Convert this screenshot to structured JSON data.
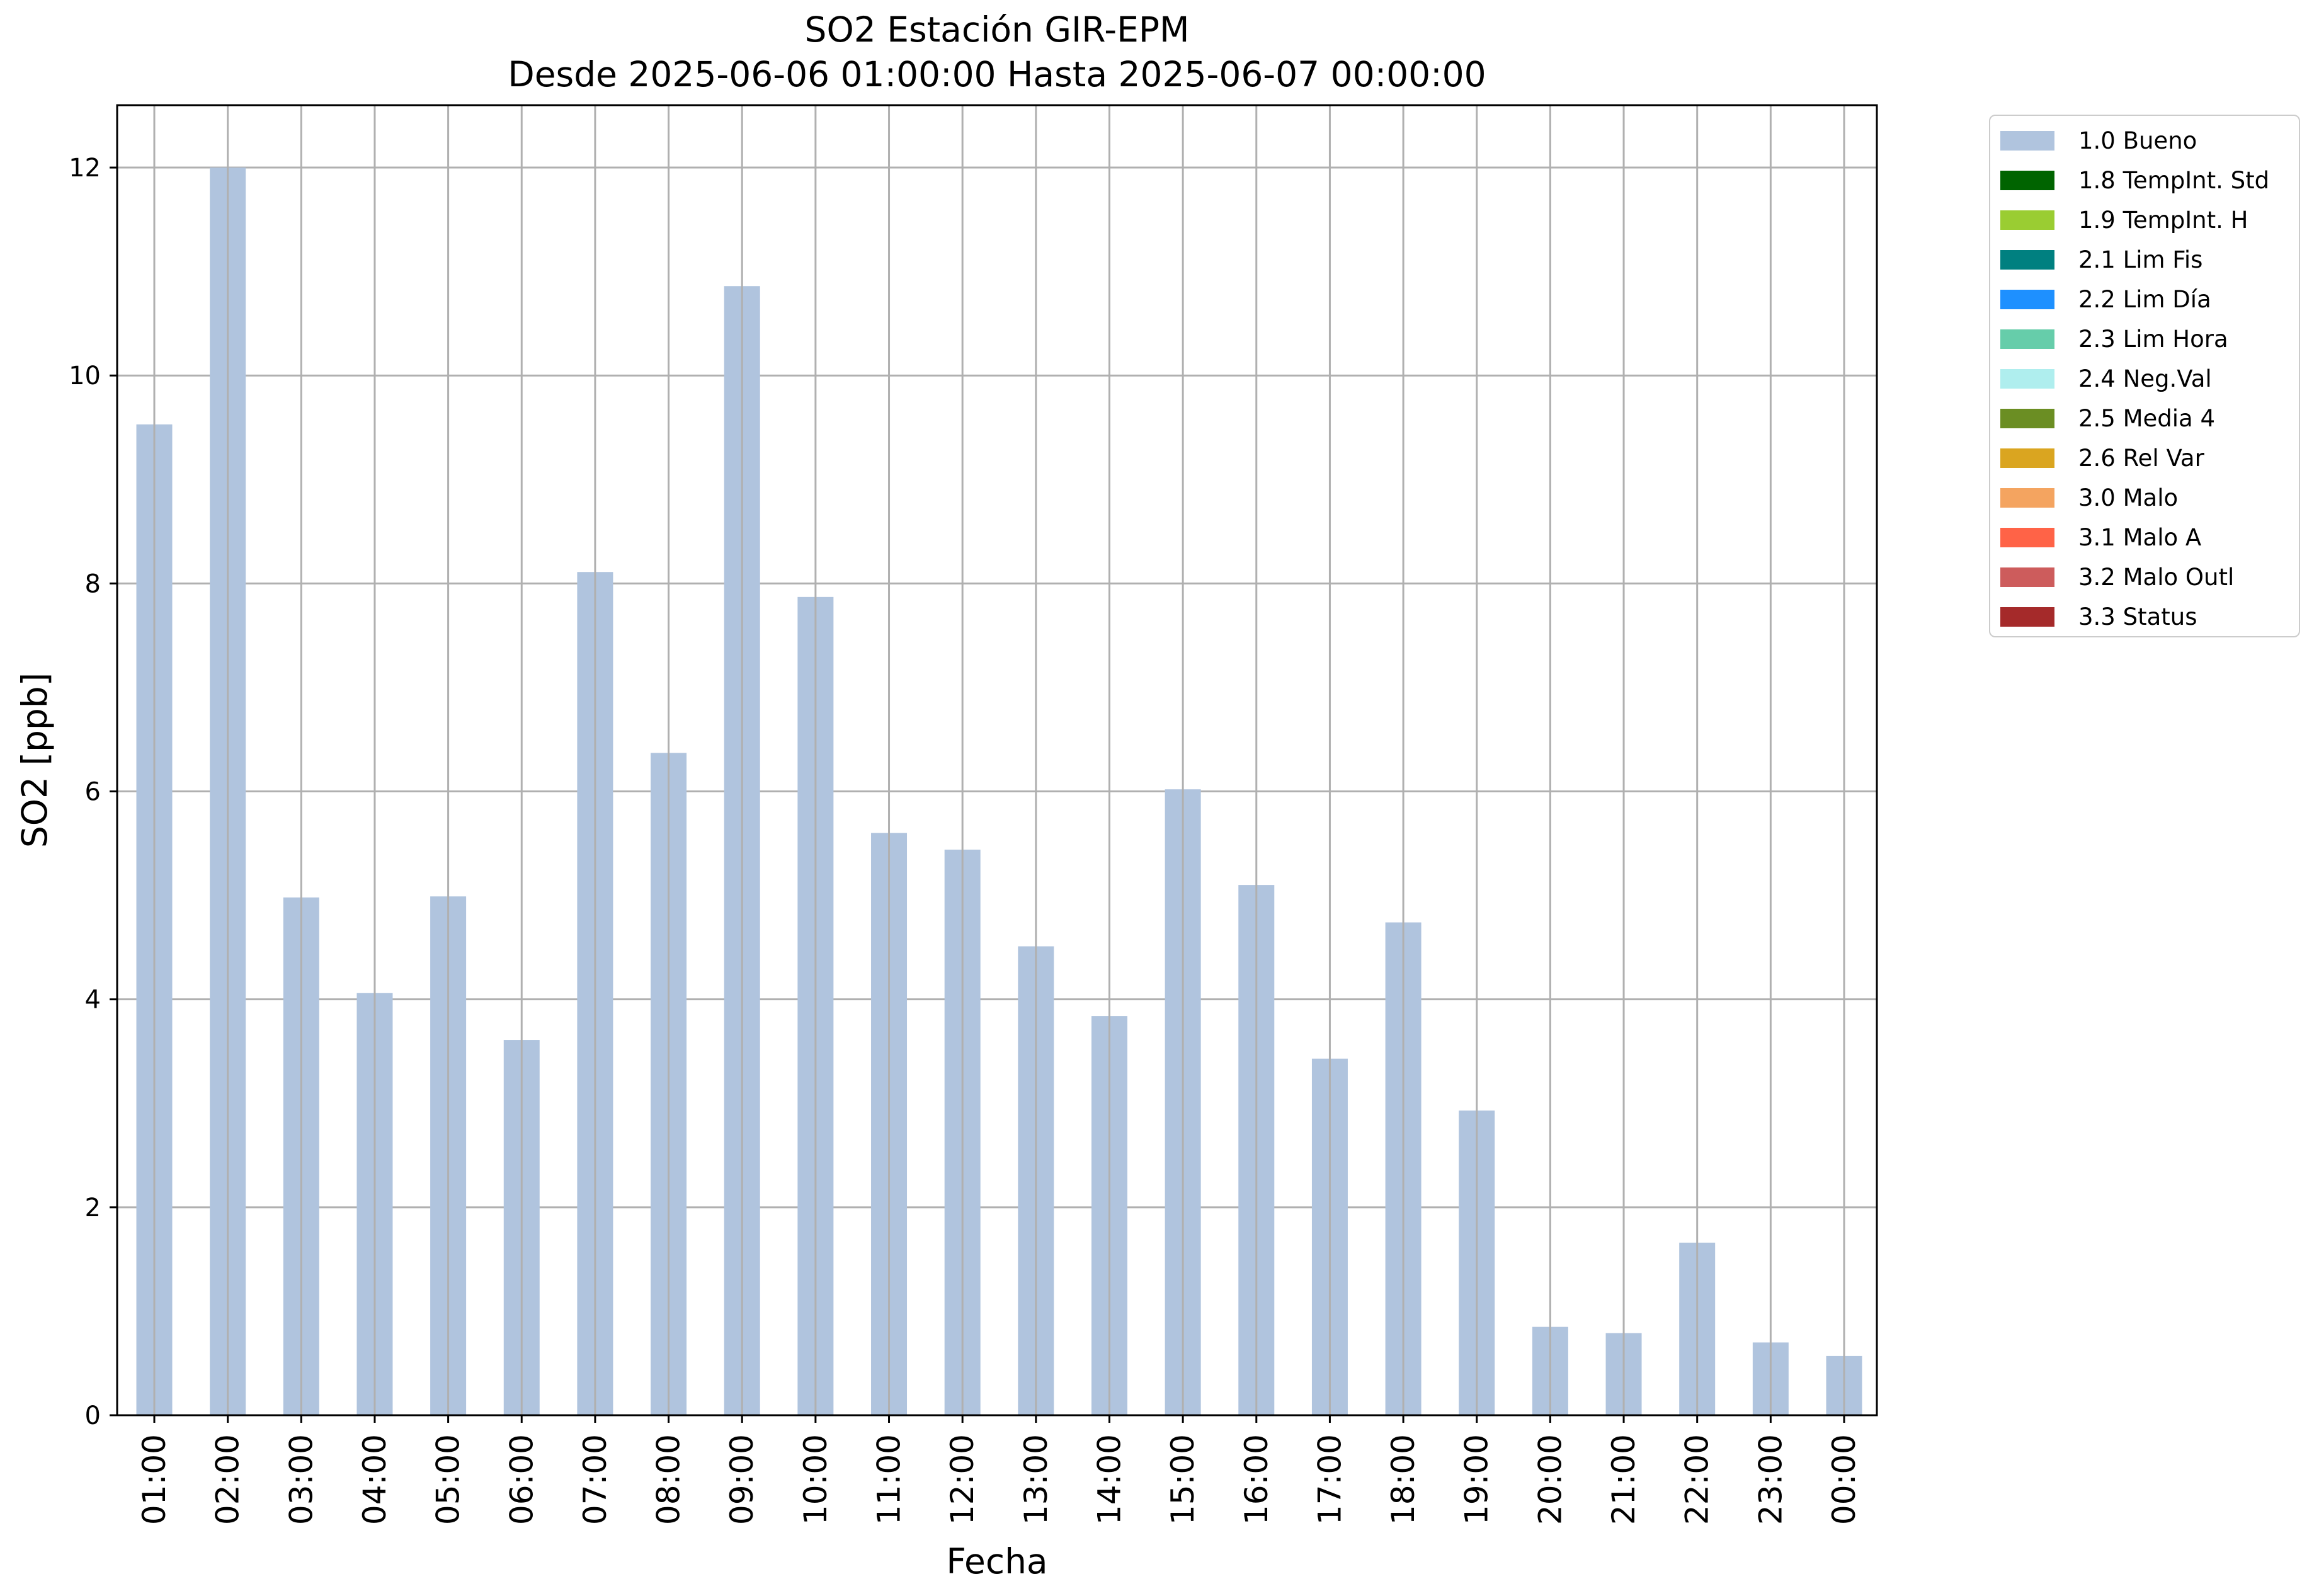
{
  "chart_data": {
    "type": "bar",
    "title": "SO2 Estación GIR-EPM",
    "subtitle": "Desde 2025-06-06 01:00:00 Hasta 2025-06-07 00:00:00",
    "xlabel": "Fecha",
    "ylabel": "SO2 [ppb]",
    "ylim": [
      0,
      12.6
    ],
    "yticks": [
      "0",
      "2",
      "4",
      "6",
      "8",
      "10",
      "12"
    ],
    "grid": true,
    "legend_position": "outside-top-right",
    "categories": [
      "01:00",
      "02:00",
      "03:00",
      "04:00",
      "05:00",
      "06:00",
      "07:00",
      "08:00",
      "09:00",
      "10:00",
      "11:00",
      "12:00",
      "13:00",
      "14:00",
      "15:00",
      "16:00",
      "17:00",
      "18:00",
      "19:00",
      "20:00",
      "21:00",
      "22:00",
      "23:00",
      "00:00"
    ],
    "series": [
      {
        "name": "1.0 Bueno",
        "color": "#b0c4de",
        "values": [
          9.53,
          12.0,
          4.98,
          4.06,
          4.99,
          3.61,
          8.11,
          6.37,
          10.86,
          7.87,
          5.6,
          5.44,
          4.51,
          3.84,
          6.02,
          5.1,
          3.43,
          4.74,
          2.93,
          0.85,
          0.79,
          1.66,
          0.7,
          0.57
        ]
      }
    ],
    "legend": [
      {
        "label": "1.0 Bueno",
        "color": "#b0c4de"
      },
      {
        "label": "1.8 TempInt. Std",
        "color": "#006400"
      },
      {
        "label": "1.9 TempInt. H",
        "color": "#9acd32"
      },
      {
        "label": "2.1 Lim Fis",
        "color": "#008080"
      },
      {
        "label": "2.2 Lim Día",
        "color": "#1e90ff"
      },
      {
        "label": "2.3 Lim Hora",
        "color": "#66cdaa"
      },
      {
        "label": "2.4 Neg.Val",
        "color": "#afeeee"
      },
      {
        "label": "2.5 Media 4",
        "color": "#6b8e23"
      },
      {
        "label": "2.6 Rel Var",
        "color": "#daa520"
      },
      {
        "label": "3.0 Malo",
        "color": "#f4a460"
      },
      {
        "label": "3.1 Malo A",
        "color": "#ff6347"
      },
      {
        "label": "3.2 Malo Outl",
        "color": "#cd5c5c"
      },
      {
        "label": "3.3 Status",
        "color": "#a52a2a"
      }
    ]
  }
}
